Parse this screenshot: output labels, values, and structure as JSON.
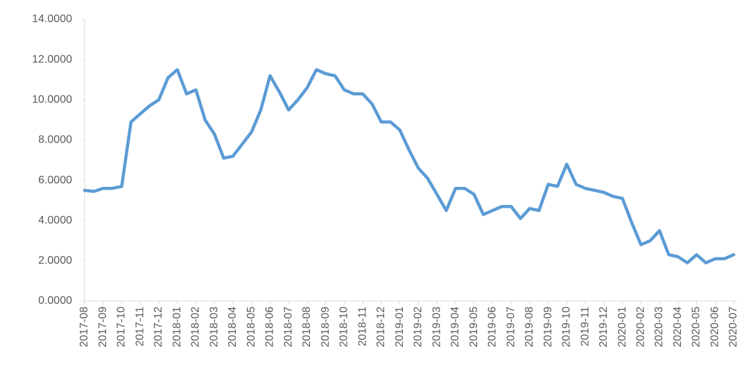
{
  "chart_data": {
    "type": "line",
    "categories": [
      "2017-08",
      null,
      "2017-09",
      null,
      "2017-10",
      null,
      "2017-11",
      null,
      "2017-12",
      null,
      "2018-01",
      null,
      "2018-02",
      null,
      "2018-03",
      null,
      "2018-04",
      null,
      "2018-05",
      null,
      "2018-06",
      null,
      "2018-07",
      null,
      "2018-08",
      null,
      "2018-09",
      null,
      "2018-10",
      null,
      "2018-11",
      null,
      "2018-12",
      null,
      "2019-01",
      null,
      "2019-02",
      null,
      "2019-03",
      null,
      "2019-04",
      null,
      "2019-05",
      null,
      "2019-06",
      null,
      "2019-07",
      null,
      "2019-08",
      null,
      "2019-09",
      null,
      "2019-10",
      null,
      "2019-11",
      null,
      "2019-12",
      null,
      "2020-01",
      null,
      "2020-02",
      null,
      "2020-03",
      null,
      "2020-04",
      null,
      "2020-05",
      null,
      "2020-06",
      null,
      "2020-07"
    ],
    "values": [
      5.5,
      5.45,
      5.6,
      5.6,
      5.7,
      8.9,
      9.3,
      9.7,
      10.0,
      11.1,
      11.5,
      10.3,
      10.5,
      9.0,
      8.3,
      7.1,
      7.2,
      7.8,
      8.4,
      9.5,
      11.2,
      10.4,
      9.5,
      10.0,
      10.6,
      11.5,
      11.3,
      11.2,
      10.5,
      10.3,
      10.3,
      9.8,
      8.9,
      8.9,
      8.5,
      7.5,
      6.6,
      6.1,
      5.3,
      4.5,
      5.6,
      5.6,
      5.3,
      4.3,
      4.5,
      4.7,
      4.7,
      4.1,
      4.6,
      4.5,
      5.8,
      5.7,
      6.8,
      5.8,
      5.6,
      5.5,
      5.4,
      5.2,
      5.1,
      3.9,
      2.8,
      3.0,
      3.5,
      2.3,
      2.2,
      1.9,
      2.3,
      1.9,
      2.1,
      2.1,
      2.3
    ],
    "color": "#5b9bd5",
    "ylim": [
      0,
      14
    ],
    "yticks": [
      {
        "value": 0,
        "label": "0.0000"
      },
      {
        "value": 2,
        "label": "2.0000"
      },
      {
        "value": 4,
        "label": "4.0000"
      },
      {
        "value": 6,
        "label": "6.0000"
      },
      {
        "value": 8,
        "label": "8.0000"
      },
      {
        "value": 10,
        "label": "10.0000"
      },
      {
        "value": 12,
        "label": "12.0000"
      },
      {
        "value": 14,
        "label": "14.0000"
      }
    ]
  }
}
